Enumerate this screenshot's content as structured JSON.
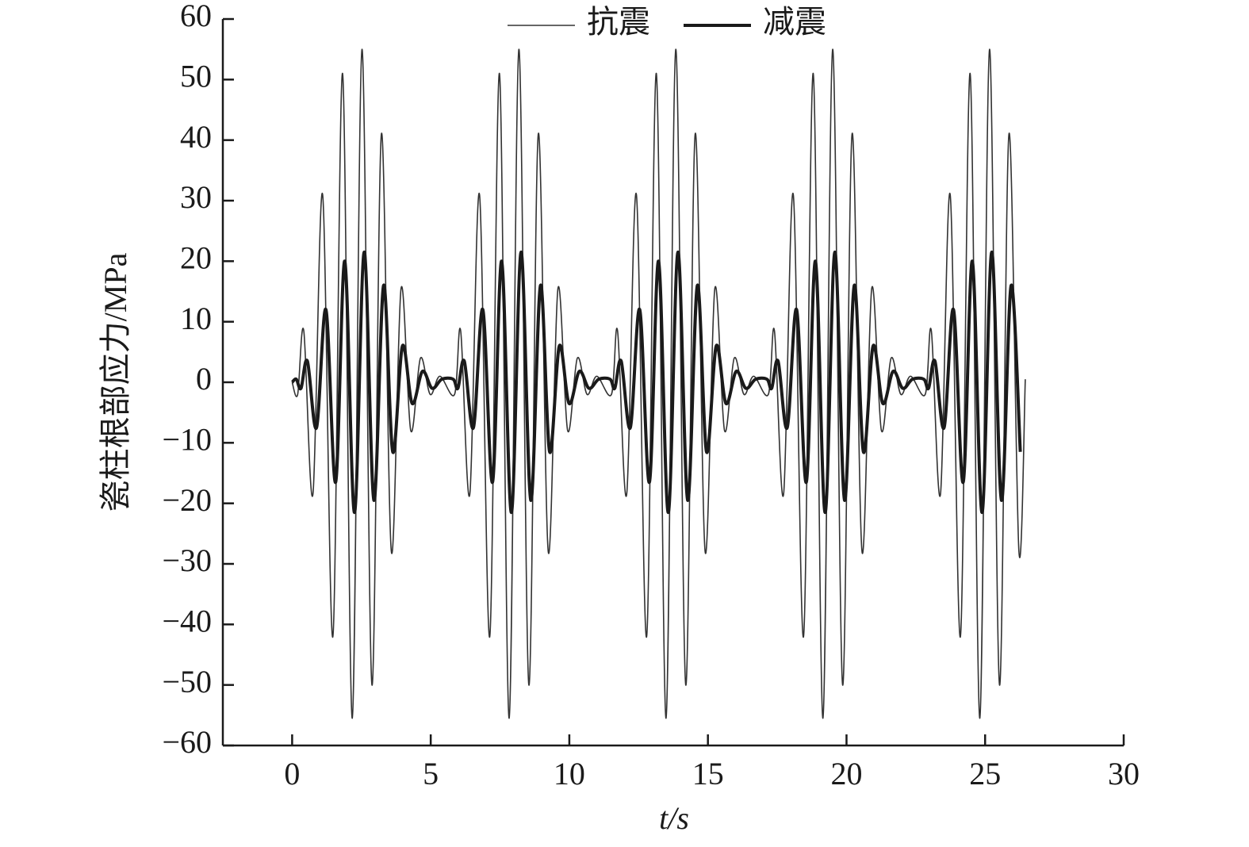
{
  "chart_data": {
    "type": "line",
    "xlabel": "t/s",
    "ylabel": "瓷柱根部应力/MPa",
    "xlim": [
      -2.5,
      30
    ],
    "xticks": [
      0,
      5,
      10,
      15,
      20,
      25,
      30
    ],
    "ylim": [
      -60,
      60
    ],
    "yticks": [
      {
        "value": -60,
        "label": "−60"
      },
      {
        "value": -50,
        "label": "−50"
      },
      {
        "value": -40,
        "label": "−40"
      },
      {
        "value": -30,
        "label": "−30"
      },
      {
        "value": -20,
        "label": "−20"
      },
      {
        "value": -10,
        "label": "−10"
      },
      0,
      10,
      20,
      30,
      40,
      50,
      60
    ],
    "legend": "top",
    "series": [
      {
        "name": "抗震",
        "color": "#333333",
        "width": 1.6,
        "x": [
          0,
          0.2,
          0.42,
          0.75,
          1.1,
          1.47,
          1.82,
          2.17,
          2.52,
          2.88,
          3.22,
          3.58,
          3.93,
          4.28,
          4.63,
          4.98,
          5.33,
          5.86,
          6.08,
          6.41,
          6.76,
          7.13,
          7.48,
          7.83,
          8.18,
          8.54,
          8.88,
          9.24,
          9.59,
          9.94,
          10.29,
          10.64,
          10.99,
          11.52,
          11.74,
          12.07,
          12.42,
          12.79,
          13.14,
          13.49,
          13.84,
          14.2,
          14.54,
          14.9,
          15.25,
          15.6,
          15.95,
          16.3,
          16.65,
          17.18,
          17.4,
          17.73,
          18.08,
          18.45,
          18.8,
          19.15,
          19.5,
          19.86,
          20.2,
          20.56,
          20.91,
          21.26,
          21.61,
          21.96,
          22.31,
          22.84,
          23.06,
          23.39,
          23.74,
          24.11,
          24.46,
          24.81,
          25.16,
          25.52,
          25.86,
          26.22,
          26.45
        ],
        "values": [
          0,
          -2,
          8.5,
          -18.5,
          31,
          -42,
          51,
          -55.5,
          55,
          -50,
          41,
          -28,
          15.5,
          -8,
          4,
          -2,
          1,
          -2,
          8.5,
          -18.5,
          31,
          -42,
          51,
          -55.5,
          55,
          -50,
          41,
          -28,
          15.5,
          -8,
          4,
          -2,
          1,
          -2,
          8.5,
          -18.5,
          31,
          -42,
          51,
          -55.5,
          55,
          -50,
          41,
          -28,
          15.5,
          -8,
          4,
          -2,
          1,
          -2,
          8.5,
          -18.5,
          31,
          -42,
          51,
          -55.5,
          55,
          -50,
          41,
          -28,
          15.5,
          -8,
          4,
          -2,
          1,
          -2,
          8.5,
          -18.5,
          31,
          -42,
          51,
          -55.5,
          55,
          -50,
          41,
          -28,
          0.5
        ]
      },
      {
        "name": "减震",
        "color": "#1a1a1a",
        "width": 4,
        "x": [
          0,
          0.15,
          0.32,
          0.55,
          0.88,
          1.22,
          1.57,
          1.9,
          2.25,
          2.6,
          2.95,
          3.3,
          3.63,
          3.98,
          4.33,
          4.7,
          5.05,
          5.4,
          5.81,
          5.98,
          6.21,
          6.54,
          6.88,
          7.23,
          7.56,
          7.91,
          8.26,
          8.61,
          8.96,
          9.29,
          9.64,
          9.99,
          10.36,
          10.71,
          11.06,
          11.47,
          11.64,
          11.87,
          12.2,
          12.54,
          12.89,
          13.22,
          13.57,
          13.92,
          14.27,
          14.62,
          14.95,
          15.3,
          15.65,
          16.02,
          16.37,
          16.72,
          17.13,
          17.3,
          17.53,
          17.86,
          18.2,
          18.55,
          18.88,
          19.23,
          19.58,
          19.93,
          20.28,
          20.61,
          20.96,
          21.31,
          21.68,
          22.03,
          22.38,
          22.79,
          22.96,
          23.19,
          23.52,
          23.86,
          24.21,
          24.54,
          24.89,
          25.24,
          25.59,
          25.94,
          26.27
        ],
        "values": [
          0,
          0.5,
          -1,
          3.5,
          -7.5,
          12,
          -16.5,
          20,
          -21.5,
          21.5,
          -19.5,
          16,
          -11.5,
          6,
          -3.5,
          1.8,
          -1,
          0.5,
          0.5,
          -1,
          3.5,
          -7.5,
          12,
          -16.5,
          20,
          -21.5,
          21.5,
          -19.5,
          16,
          -11.5,
          6,
          -3.5,
          1.8,
          -1,
          0.5,
          0.5,
          -1,
          3.5,
          -7.5,
          12,
          -16.5,
          20,
          -21.5,
          21.5,
          -19.5,
          16,
          -11.5,
          6,
          -3.5,
          1.8,
          -1,
          0.5,
          0.5,
          -1,
          3.5,
          -7.5,
          12,
          -16.5,
          20,
          -21.5,
          21.5,
          -19.5,
          16,
          -11.5,
          6,
          -3.5,
          1.8,
          -1,
          0.5,
          0.5,
          -1,
          3.5,
          -7.5,
          12,
          -16.5,
          20,
          -21.5,
          21.5,
          -19.5,
          16,
          -11.5
        ]
      }
    ]
  }
}
